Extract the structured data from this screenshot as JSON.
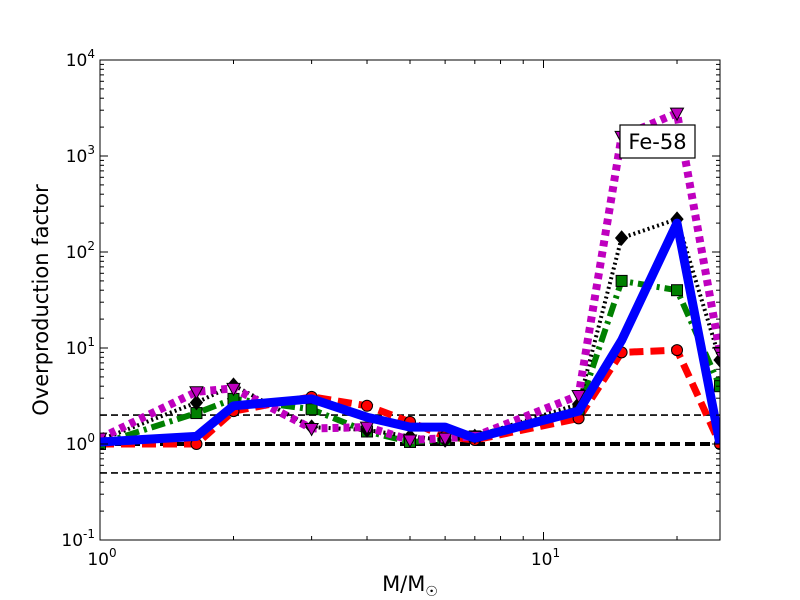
{
  "chart_data": {
    "type": "line",
    "xscale": "log",
    "yscale": "log",
    "xlim": [
      1,
      25
    ],
    "ylim": [
      0.1,
      10000
    ],
    "xlabel": "M/M☉",
    "ylabel": "Overproduction factor",
    "grid": false,
    "x_ticks": [
      {
        "value": 1,
        "base": "10",
        "exp": "0"
      },
      {
        "value": 10,
        "base": "10",
        "exp": "1"
      }
    ],
    "y_ticks": [
      {
        "value": 0.1,
        "base": "10",
        "exp": "-1"
      },
      {
        "value": 1,
        "base": "10",
        "exp": "0"
      },
      {
        "value": 10,
        "base": "10",
        "exp": "1"
      },
      {
        "value": 100,
        "base": "10",
        "exp": "2"
      },
      {
        "value": 1000,
        "base": "10",
        "exp": "3"
      },
      {
        "value": 10000,
        "base": "10",
        "exp": "4"
      }
    ],
    "annotation": "Fe-58",
    "reference_lines": [
      {
        "y": 2.0,
        "style": "thin-dashed",
        "color": "#000000"
      },
      {
        "y": 1.0,
        "style": "thick-dashed",
        "color": "#000000"
      },
      {
        "y": 0.5,
        "style": "thin-dashed",
        "color": "#000000"
      }
    ],
    "series": [
      {
        "color": "#ff0000",
        "line_style": "dashed",
        "marker": "circle",
        "x": [
          1,
          1.65,
          2,
          3,
          4,
          5,
          6,
          7,
          12,
          15,
          20,
          25
        ],
        "y": [
          1.0,
          1.0,
          2.2,
          3.1,
          2.5,
          1.7,
          1.2,
          1.1,
          1.85,
          9.0,
          9.5,
          1.0
        ]
      },
      {
        "color": "#008000",
        "line_style": "dashdot",
        "marker": "square",
        "x": [
          1,
          1.65,
          2,
          3,
          4,
          5,
          6,
          7,
          12,
          15,
          20,
          25
        ],
        "y": [
          1.0,
          2.1,
          2.95,
          2.3,
          1.35,
          1.05,
          1.1,
          1.2,
          2.3,
          50,
          40,
          4.0
        ]
      },
      {
        "color": "#000000",
        "line_style": "dotted",
        "marker": "diamond",
        "x": [
          1,
          1.65,
          2,
          3,
          4,
          5,
          6,
          7,
          12,
          15,
          20,
          25
        ],
        "y": [
          1.1,
          2.7,
          4.1,
          1.5,
          1.4,
          1.2,
          1.1,
          1.2,
          2.6,
          140,
          220,
          7.5
        ]
      },
      {
        "color": "#bf00bf",
        "line_style": "dotted",
        "marker": "triangle-down",
        "x": [
          1,
          1.65,
          2,
          3,
          4,
          5,
          6,
          7,
          12,
          15,
          20,
          25
        ],
        "y": [
          1.15,
          3.5,
          3.8,
          1.45,
          1.5,
          1.1,
          1.15,
          1.2,
          3.2,
          1600,
          2800,
          9.0
        ]
      },
      {
        "color": "#0000ff",
        "line_style": "solid",
        "marker": "none",
        "x": [
          1,
          1.65,
          2,
          3,
          4,
          5,
          6,
          7,
          12,
          15,
          20,
          25
        ],
        "y": [
          1.05,
          1.2,
          2.5,
          2.95,
          1.9,
          1.5,
          1.5,
          1.15,
          2.2,
          12,
          200,
          1.0
        ]
      }
    ]
  }
}
